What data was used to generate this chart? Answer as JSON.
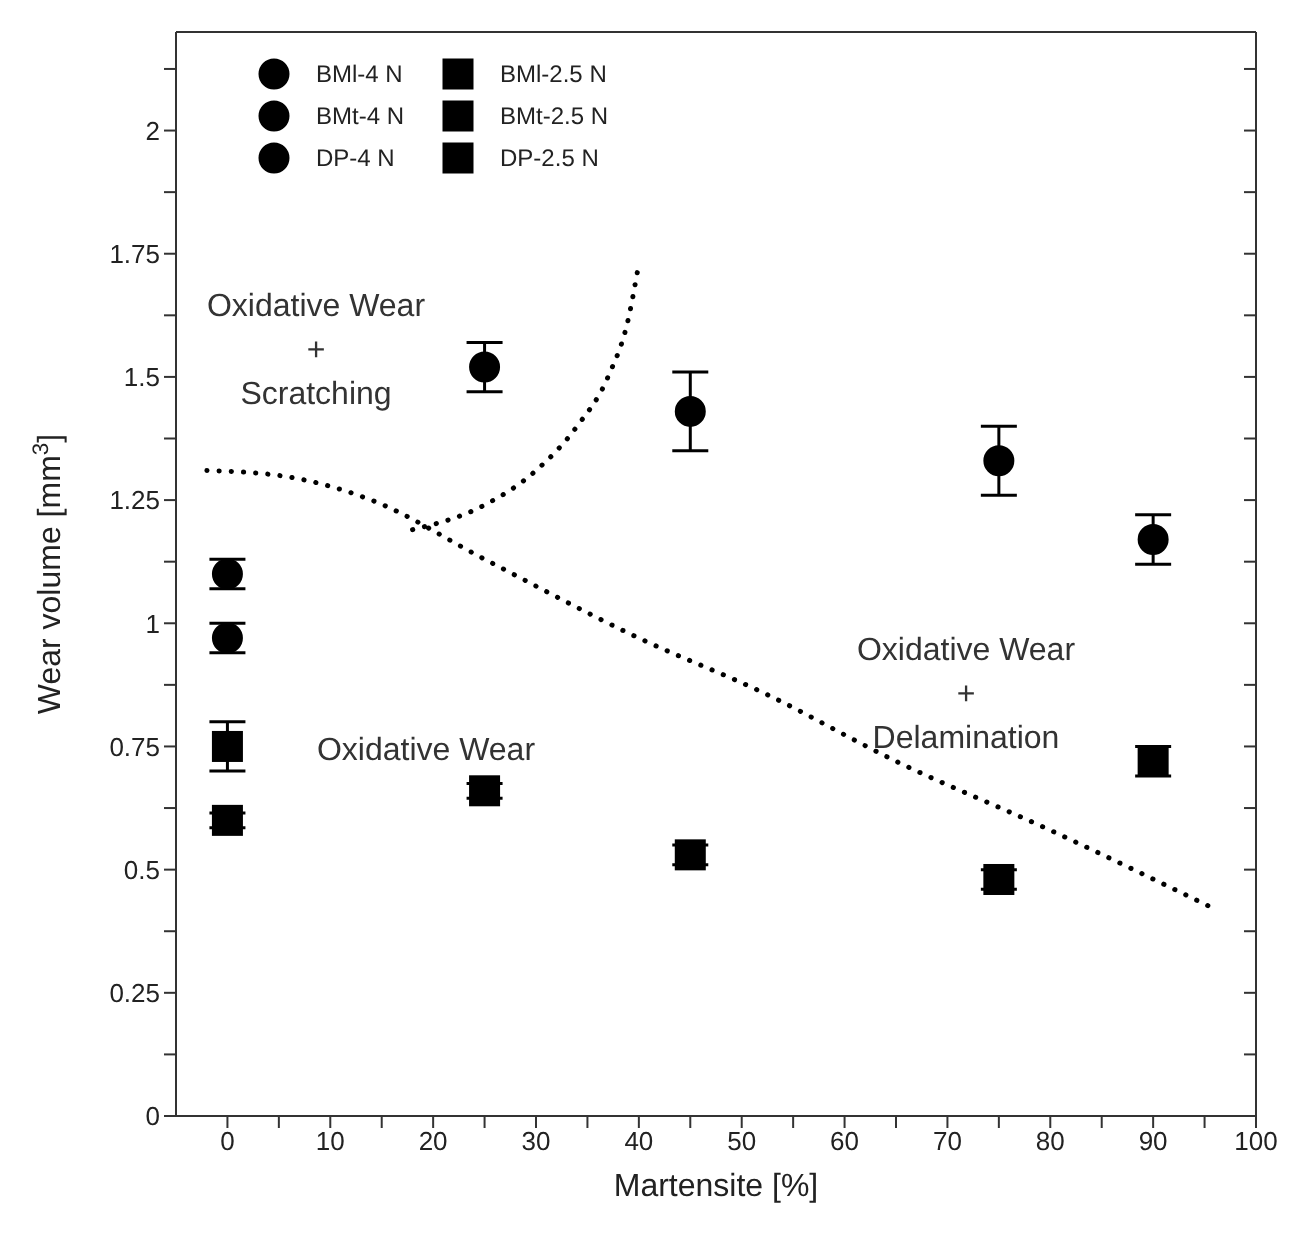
{
  "chart_data": {
    "type": "scatter",
    "xlabel": "Martensite [%]",
    "ylabel": "Wear volume [mm$^{3}$]",
    "xlim": [
      -5,
      100
    ],
    "xticks": [
      0,
      {
        "value": 5,
        "label": null
      },
      10,
      {
        "value": 15,
        "label": null
      },
      20,
      {
        "value": 25,
        "label": null
      },
      30,
      {
        "value": 35,
        "label": null
      },
      40,
      {
        "value": 45,
        "label": null
      },
      50,
      {
        "value": 55,
        "label": null
      },
      60,
      {
        "value": 65,
        "label": null
      },
      70,
      {
        "value": 75,
        "label": null
      },
      80,
      {
        "value": 85,
        "label": null
      },
      90,
      {
        "value": 95,
        "label": null
      },
      100
    ],
    "ylim": [
      0,
      2.2
    ],
    "yticks": [
      0,
      {
        "value": 0.125,
        "label": null
      },
      0.25,
      {
        "value": 0.375,
        "label": null
      },
      0.5,
      {
        "value": 0.625,
        "label": null
      },
      0.75,
      {
        "value": 0.875,
        "label": null
      },
      1,
      {
        "value": 1.125,
        "label": null
      },
      1.25,
      {
        "value": 1.375,
        "label": null
      },
      1.5,
      {
        "value": 1.625,
        "label": null
      },
      1.75,
      {
        "value": 1.875,
        "label": null
      },
      2,
      {
        "value": 2.125,
        "label": null
      }
    ],
    "grid": false,
    "legend": "top left",
    "series": [
      {
        "name": "BMl-4 N",
        "color": "#000000",
        "marker": "circle",
        "x": [
          0
        ],
        "values": [
          1.1
        ],
        "errors": [
          0.03
        ]
      },
      {
        "name": "BMt-4 N",
        "color": "#000000",
        "marker": "circle",
        "x": [
          0
        ],
        "values": [
          0.97
        ],
        "errors": [
          0.03
        ]
      },
      {
        "name": "DP-4 N",
        "color": "#000000",
        "marker": "circle",
        "x": [
          25,
          45,
          75,
          90
        ],
        "values": [
          1.52,
          1.43,
          1.33,
          1.17
        ],
        "errors": [
          0.05,
          0.08,
          0.07,
          0.05
        ]
      },
      {
        "name": "BMl-2.5 N",
        "color": "#000000",
        "marker": "square",
        "x": [
          0
        ],
        "values": [
          0.6
        ],
        "errors": [
          0.015
        ]
      },
      {
        "name": "BMt-2.5 N",
        "color": "#000000",
        "marker": "square",
        "x": [
          0
        ],
        "values": [
          0.75
        ],
        "errors": [
          0.05
        ]
      },
      {
        "name": "DP-2.5 N",
        "color": "#000000",
        "marker": "square",
        "x": [
          25,
          45,
          75,
          90
        ],
        "values": [
          0.66,
          0.53,
          0.48,
          0.72
        ],
        "errors": [
          0.015,
          0.02,
          0.02,
          0.03
        ]
      },
      {
        "type": "line",
        "color": "#000000",
        "line_style": "dotted",
        "marker": "none",
        "x": [
          -2,
          5,
          14,
          25,
          40,
          52,
          65,
          80,
          96
        ],
        "values": [
          1.31,
          1.3,
          1.25,
          1.13,
          0.97,
          0.86,
          0.72,
          0.58,
          0.42
        ]
      },
      {
        "type": "line",
        "color": "#000000",
        "line_style": "dotted",
        "marker": "none",
        "x": [
          18,
          25,
          30,
          34,
          37,
          39,
          40
        ],
        "values": [
          1.19,
          1.24,
          1.31,
          1.4,
          1.5,
          1.62,
          1.73
        ]
      }
    ],
    "annotations": [
      "Oxidative Wear\n+\nScratching",
      "Oxidative Wear\n+\nDelamination",
      "Oxidative Wear"
    ]
  }
}
